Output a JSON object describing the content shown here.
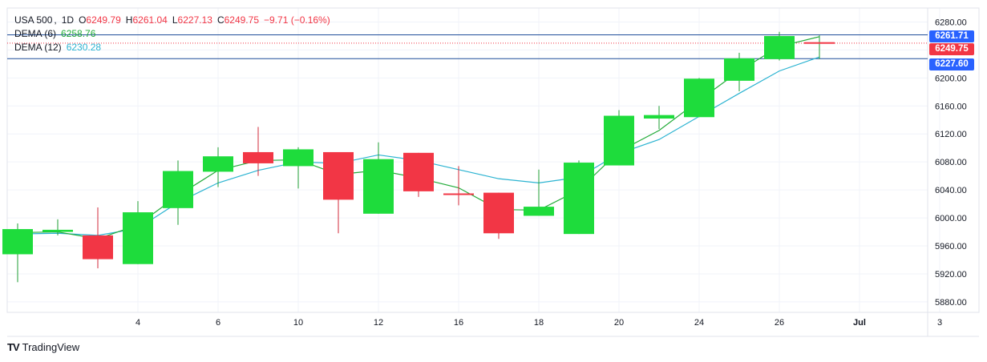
{
  "header": {
    "symbol": "USA 500",
    "interval": "1D",
    "open_label": "O",
    "open": "6249.79",
    "high_label": "H",
    "high": "6261.04",
    "low_label": "L",
    "low": "6227.13",
    "close_label": "C",
    "close": "6249.75",
    "change": "−9.71 (−0.16%)"
  },
  "indicators": [
    {
      "label": "DEMA (6)",
      "value": "6258.76",
      "color": "#22ab39"
    },
    {
      "label": "DEMA (12)",
      "value": "6230.28",
      "color": "#2bb3d1"
    }
  ],
  "price_badges": {
    "high": "6261.71",
    "close": "6249.75",
    "low": "6227.60"
  },
  "colors": {
    "up": "#1edc3c",
    "down": "#f23645",
    "wick_up": "#1e9e33",
    "wick_down": "#d0283a",
    "dema6": "#22ab39",
    "dema12": "#2bb3d1",
    "hline": "#1f4e9a",
    "badge_blue": "#2962ff",
    "badge_red": "#f23645",
    "grid": "#f0f3fa"
  },
  "footer": {
    "brand": "TradingView",
    "logo": "TV"
  },
  "chart_data": {
    "type": "candlestick",
    "x_tick_labels": [
      "4",
      "6",
      "10",
      "12",
      "16",
      "18",
      "20",
      "24",
      "26",
      "Jul",
      "3"
    ],
    "x_tick_positions": [
      3,
      5,
      7,
      9,
      11,
      13,
      15,
      17,
      19,
      21,
      23
    ],
    "y_ticks": [
      5880,
      5920,
      5960,
      6000,
      6040,
      6080,
      6120,
      6160,
      6200,
      6240,
      6280
    ],
    "ylim": [
      5865,
      6300
    ],
    "candles": [
      {
        "o": 5948,
        "h": 5992,
        "l": 5908,
        "c": 5984
      },
      {
        "o": 5980,
        "h": 5998,
        "l": 5975,
        "c": 5983
      },
      {
        "o": 5975,
        "h": 6015,
        "l": 5928,
        "c": 5941
      },
      {
        "o": 5934,
        "h": 6024,
        "l": 5934,
        "c": 6008
      },
      {
        "o": 6014,
        "h": 6082,
        "l": 5990,
        "c": 6067
      },
      {
        "o": 6066,
        "h": 6101,
        "l": 6044,
        "c": 6088
      },
      {
        "o": 6094,
        "h": 6130,
        "l": 6060,
        "c": 6078
      },
      {
        "o": 6074,
        "h": 6101,
        "l": 6042,
        "c": 6098
      },
      {
        "o": 6094,
        "h": 6094,
        "l": 5978,
        "c": 6026
      },
      {
        "o": 6006,
        "h": 6108,
        "l": 6006,
        "c": 6084
      },
      {
        "o": 6093,
        "h": 6093,
        "l": 6030,
        "c": 6038
      },
      {
        "o": 6035,
        "h": 6074,
        "l": 6018,
        "c": 6033
      },
      {
        "o": 6036,
        "h": 6036,
        "l": 5970,
        "c": 5978
      },
      {
        "o": 6003,
        "h": 6069,
        "l": 6003,
        "c": 6016
      },
      {
        "o": 5977,
        "h": 6082,
        "l": 5977,
        "c": 6079
      },
      {
        "o": 6075,
        "h": 6154,
        "l": 6075,
        "c": 6146
      },
      {
        "o": 6142,
        "h": 6160,
        "l": 6127,
        "c": 6147
      },
      {
        "o": 6144,
        "h": 6200,
        "l": 6144,
        "c": 6199
      },
      {
        "o": 6196,
        "h": 6236,
        "l": 6181,
        "c": 6228
      },
      {
        "o": 6227,
        "h": 6266,
        "l": 6225,
        "c": 6260
      },
      {
        "o": 6250,
        "h": 6261,
        "l": 6227,
        "c": 6250
      }
    ],
    "dema6": [
      5979,
      5980,
      5970,
      5990,
      6032,
      6068,
      6082,
      6083,
      6062,
      6068,
      6057,
      6043,
      6012,
      6011,
      6040,
      6095,
      6125,
      6168,
      6210,
      6245,
      6259
    ],
    "dema12": [
      5977,
      5978,
      5975,
      5985,
      6022,
      6050,
      6068,
      6080,
      6078,
      6090,
      6082,
      6069,
      6056,
      6050,
      6058,
      6092,
      6112,
      6145,
      6178,
      6210,
      6230
    ],
    "hlines": [
      6261.71,
      6227.6
    ],
    "close_line": 6249.75
  }
}
